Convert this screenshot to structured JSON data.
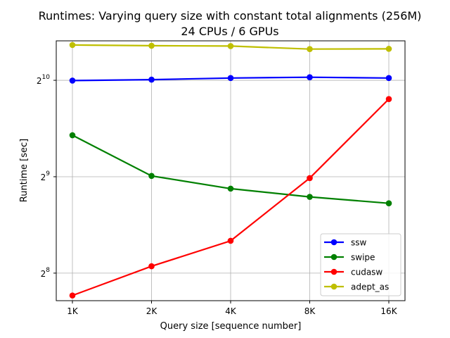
{
  "chart_data": {
    "type": "line",
    "title": "Runtimes: Varying query size with constant total alignments (256M)",
    "subtitle": "24 CPUs / 6 GPUs",
    "xlabel": "Query size [sequence number]",
    "ylabel": "Runtime [sec]",
    "categories": [
      "1K",
      "2K",
      "4K",
      "8K",
      "16K"
    ],
    "yscale": "log2",
    "ylim": [
      210,
      1360
    ],
    "yticks": [
      {
        "value": 256,
        "base": "2",
        "exp": "8"
      },
      {
        "value": 512,
        "base": "2",
        "exp": "9"
      },
      {
        "value": 1024,
        "base": "2",
        "exp": "10"
      }
    ],
    "grid": true,
    "legend_position": "lower-right",
    "series": [
      {
        "name": "ssw",
        "color": "#0000ff",
        "values": [
          1022,
          1029,
          1041,
          1047,
          1041
        ]
      },
      {
        "name": "swipe",
        "color": "#008000",
        "values": [
          690,
          515,
          470,
          443,
          423
        ]
      },
      {
        "name": "cudasw",
        "color": "#ff0000",
        "values": [
          218,
          269,
          323,
          507,
          895
        ]
      },
      {
        "name": "adept_as",
        "color": "#bfbf00",
        "values": [
          1320,
          1313,
          1310,
          1282,
          1284
        ]
      }
    ]
  }
}
